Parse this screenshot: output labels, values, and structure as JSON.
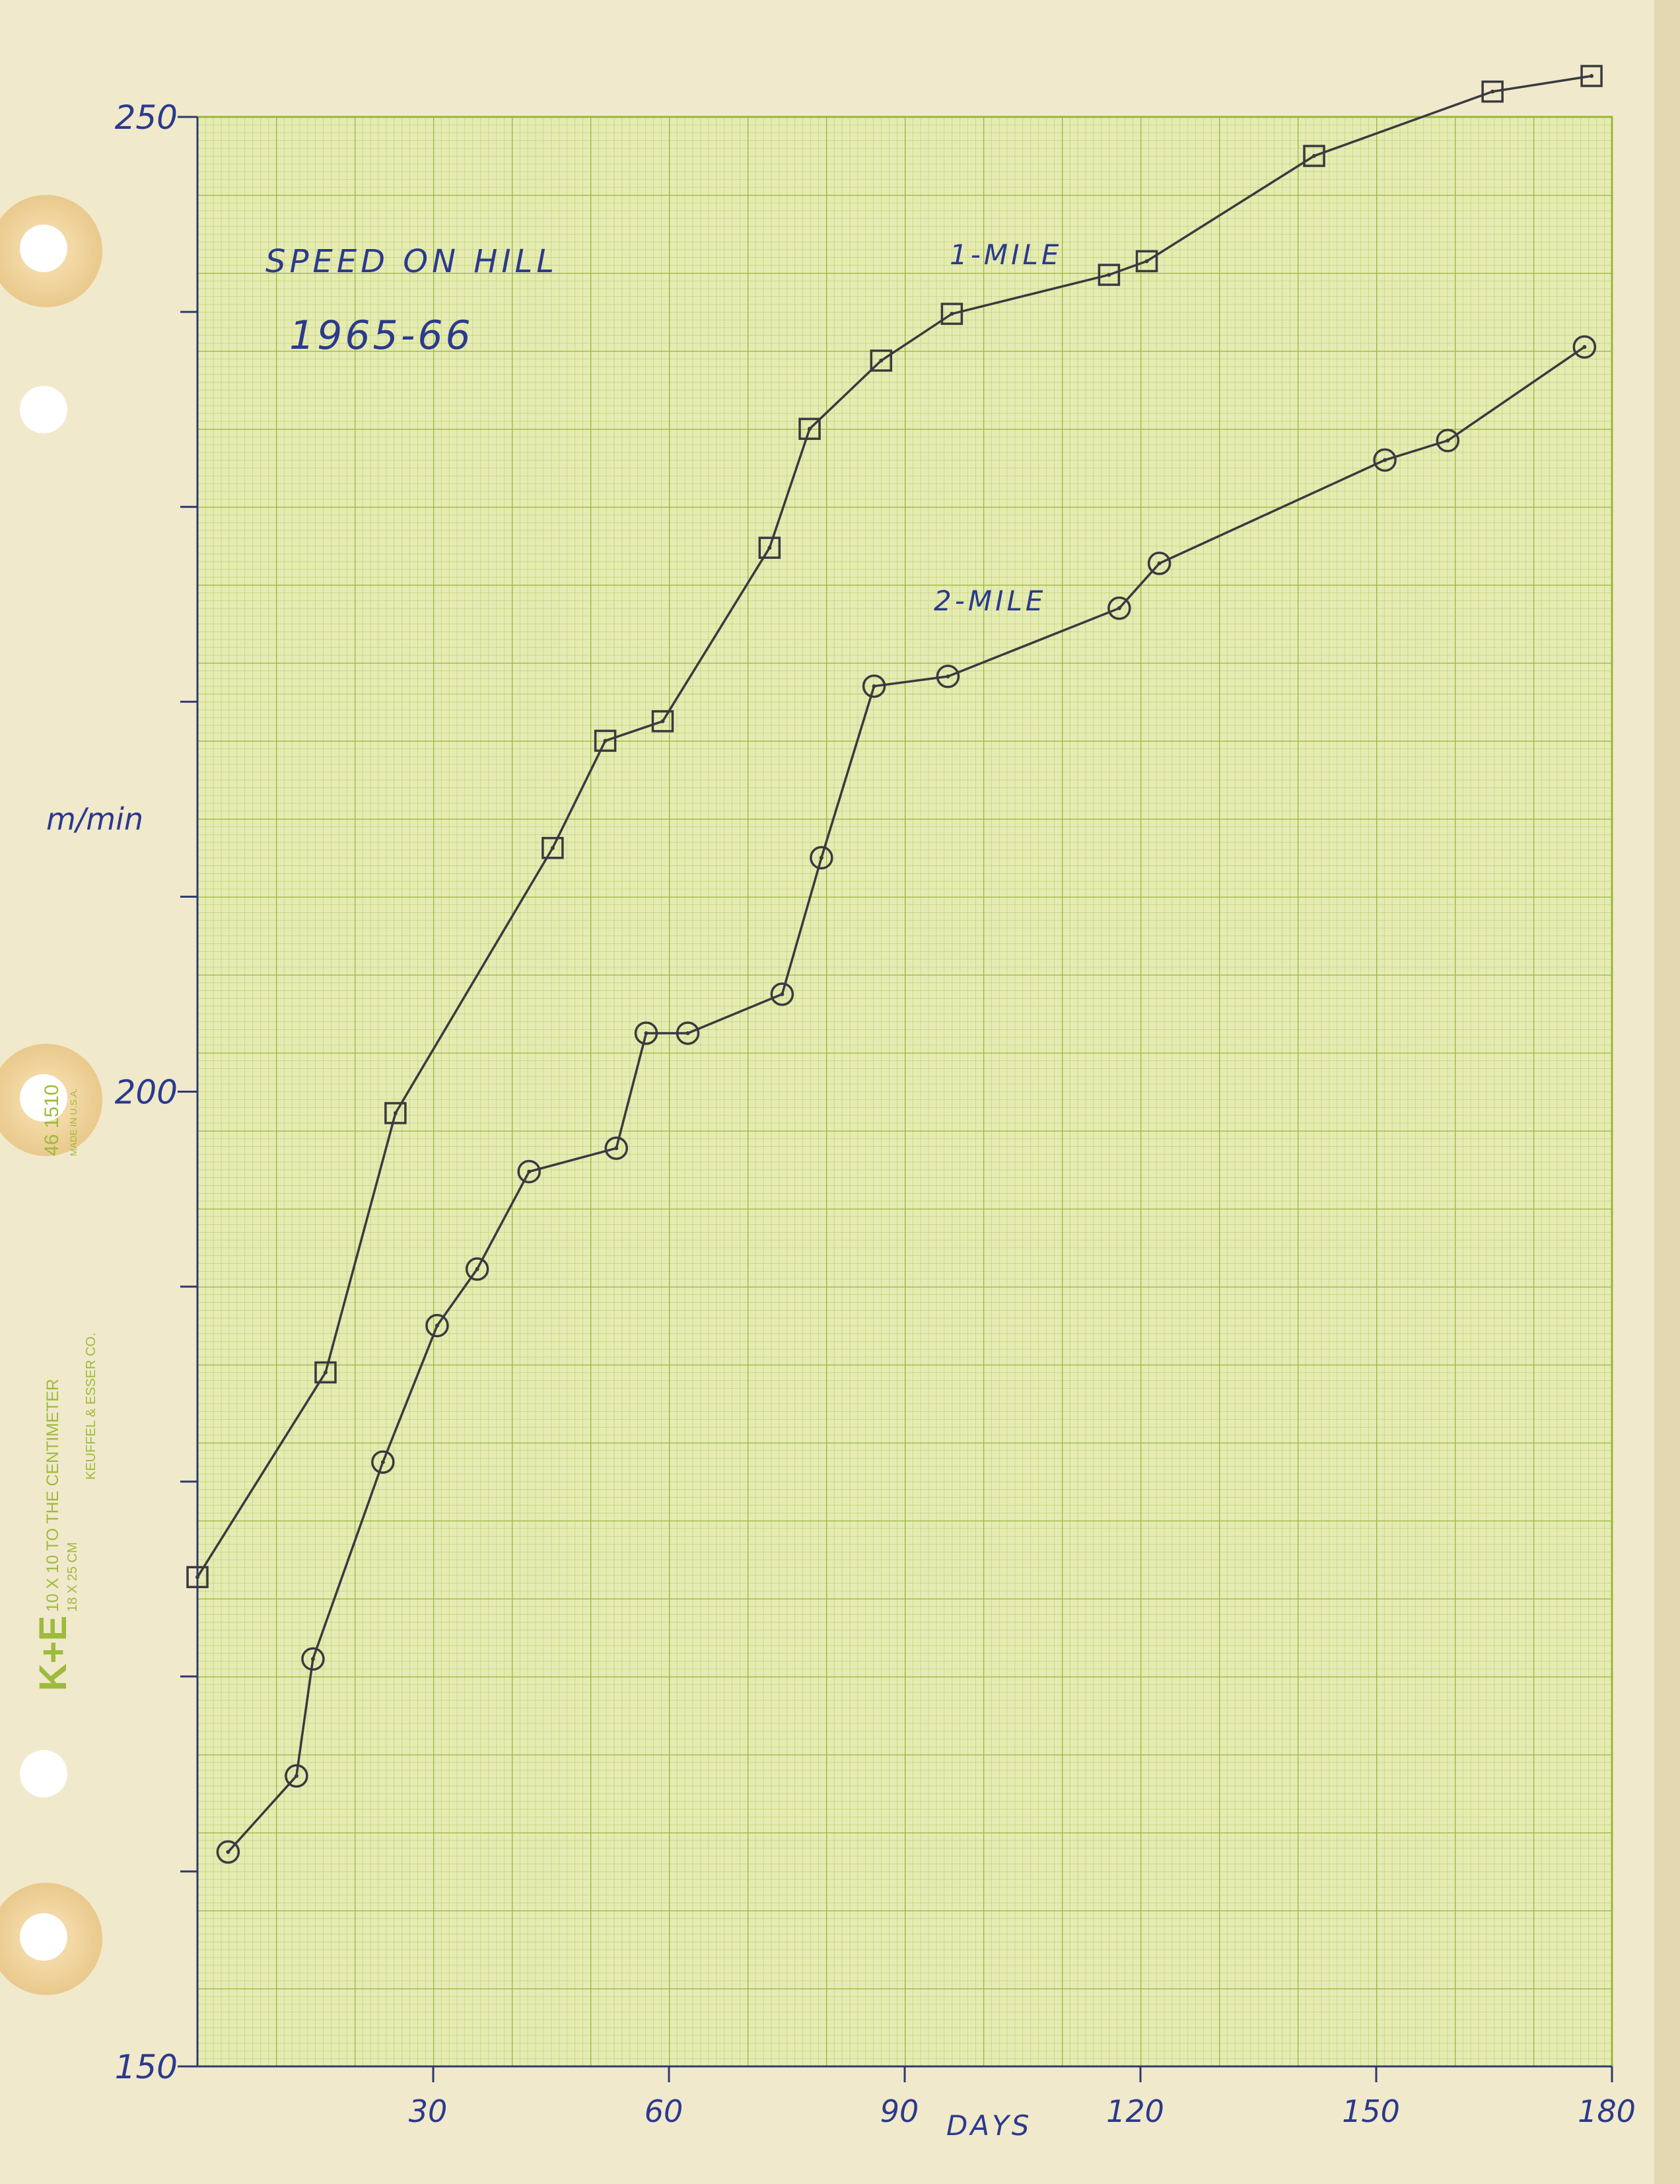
{
  "chart_data": {
    "type": "line",
    "title": "SPEED ON HILL",
    "subtitle": "1965-66",
    "y_label": "m/min",
    "x_label": "DAYS",
    "xlim": [
      0,
      180
    ],
    "xticks": [
      30,
      60,
      90,
      120,
      150,
      180
    ],
    "ylim": [
      150,
      250
    ],
    "yticks": [
      150,
      200,
      250
    ],
    "series": [
      {
        "name": "1-MILE",
        "color": "#3a3a40",
        "marker": "square",
        "x": [
          0,
          16.3,
          25.2,
          45.2,
          51.9,
          59.2,
          72.8,
          77.9,
          87,
          96,
          116,
          120.8,
          142.1,
          164.8,
          177.4
        ],
        "values": [
          175.1,
          185.6,
          198.9,
          212.5,
          218,
          219,
          227.9,
          234,
          237.5,
          239.9,
          241.9,
          242.6,
          248,
          251.3,
          252.1
        ]
      },
      {
        "name": "2-MILE",
        "color": "#3a3a40",
        "marker": "circle",
        "x": [
          3.9,
          12.6,
          14.7,
          23.6,
          30.5,
          35.6,
          42.2,
          53.3,
          57.1,
          62.4,
          74.4,
          79.4,
          86.1,
          95.5,
          117.3,
          122.4,
          151.1,
          159.1,
          176.5
        ],
        "values": [
          161,
          164.9,
          170.9,
          181,
          188,
          190.9,
          195.9,
          197.1,
          203,
          203,
          205,
          212,
          220.8,
          221.3,
          224.8,
          227.1,
          232.4,
          233.4,
          238.2
        ]
      }
    ]
  },
  "paper_print": {
    "logo": "K+E",
    "ruling": "10 X 10 TO THE CENTIMETER",
    "size": "18 X 25 CM",
    "maker": "KEUFFEL & ESSER CO.",
    "number": "46 1510",
    "origin": "MADE IN U.S.A."
  }
}
